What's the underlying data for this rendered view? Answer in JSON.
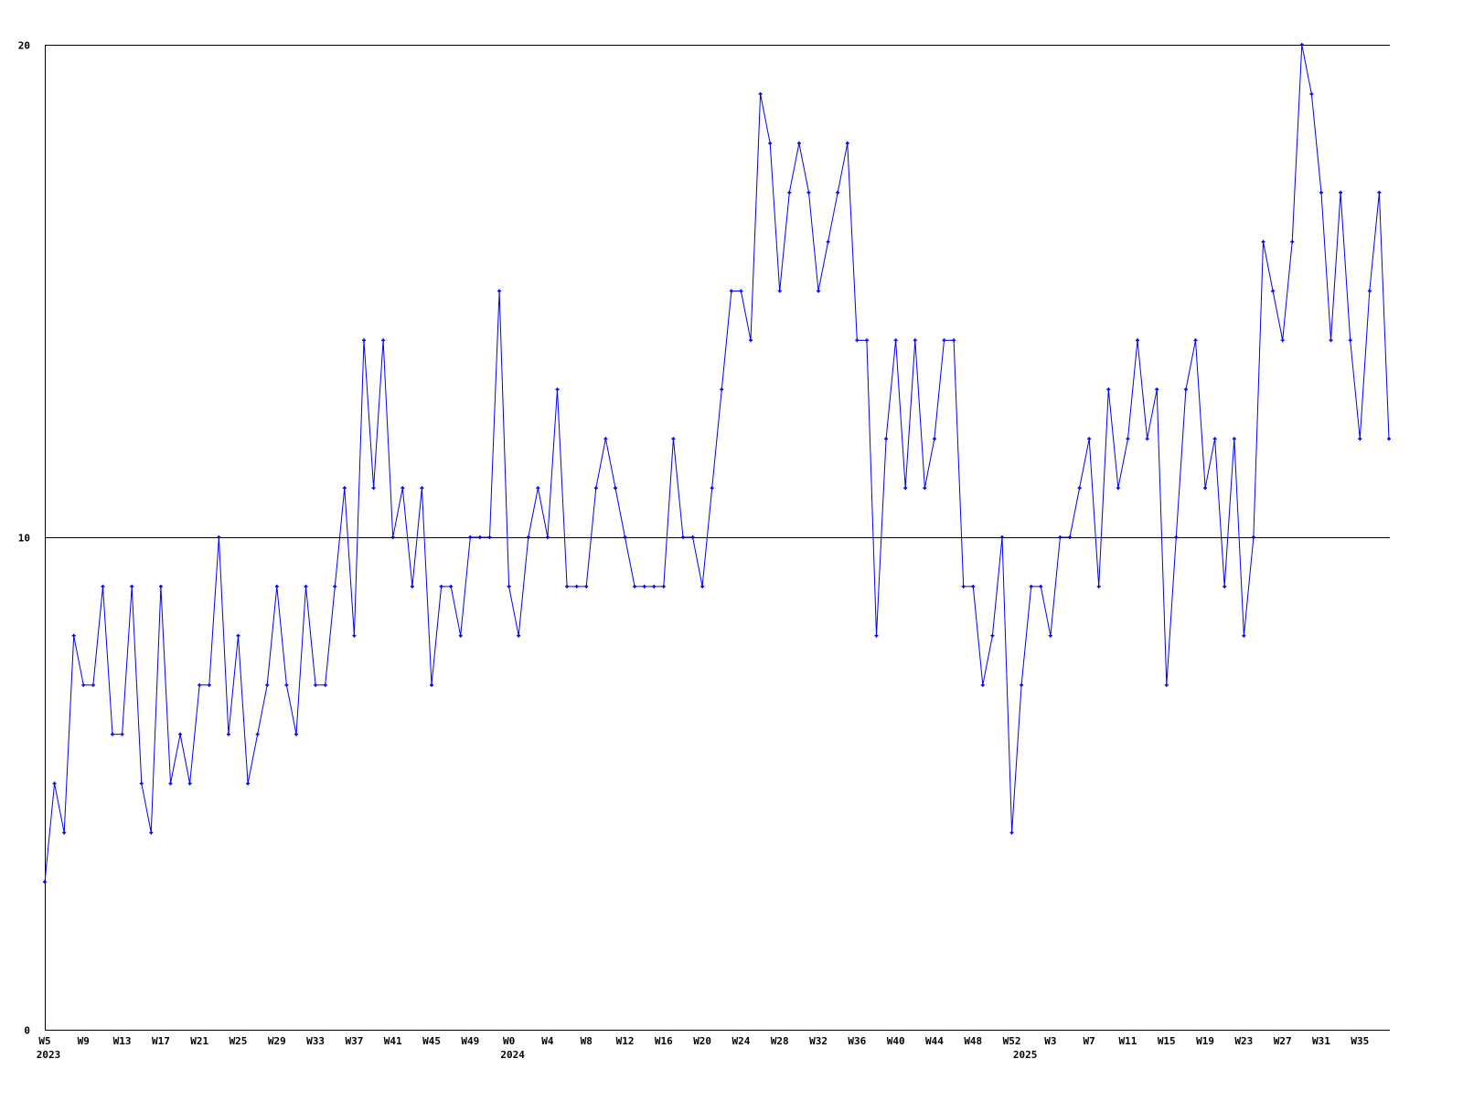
{
  "chart_data": {
    "type": "line",
    "title": "",
    "xlabel": "",
    "ylabel": "",
    "ylim": [
      0,
      20
    ],
    "y_ticks": [
      "0",
      "10",
      "20"
    ],
    "grid": "horizontal lines at y tick values",
    "legend": "none",
    "line_color": "#0000ff",
    "axis_color": "#000000",
    "tick_every": 4,
    "weeks_by_year": [
      {
        "year": "2023",
        "first_week": 5,
        "last_week": 52
      },
      {
        "year": "2024",
        "first_week": 0,
        "last_week": 52
      },
      {
        "year": "2025",
        "first_week": 0,
        "last_week": 38
      }
    ],
    "values": [
      3,
      5,
      4,
      8,
      7,
      7,
      9,
      6,
      6,
      9,
      5,
      4,
      9,
      5,
      6,
      5,
      7,
      7,
      10,
      6,
      8,
      5,
      6,
      7,
      9,
      7,
      6,
      9,
      7,
      7,
      9,
      11,
      8,
      14,
      11,
      14,
      10,
      11,
      9,
      11,
      7,
      9,
      9,
      8,
      10,
      10,
      10,
      15,
      9,
      8,
      10,
      11,
      10,
      13,
      9,
      9,
      9,
      11,
      12,
      11,
      10,
      9,
      9,
      9,
      9,
      12,
      10,
      10,
      9,
      11,
      13,
      15,
      15,
      14,
      19,
      18,
      15,
      17,
      18,
      17,
      15,
      16,
      17,
      18,
      14,
      14,
      8,
      12,
      14,
      11,
      14,
      11,
      12,
      14,
      14,
      9,
      9,
      7,
      8,
      10,
      4,
      7,
      9,
      9,
      8,
      10,
      10,
      11,
      12,
      9,
      13,
      11,
      12,
      14,
      12,
      13,
      7,
      10,
      13,
      14,
      11,
      12,
      9,
      12,
      8,
      10,
      16,
      15,
      14,
      16,
      20,
      19,
      17,
      14,
      17,
      14,
      12,
      15,
      17,
      12
    ]
  }
}
